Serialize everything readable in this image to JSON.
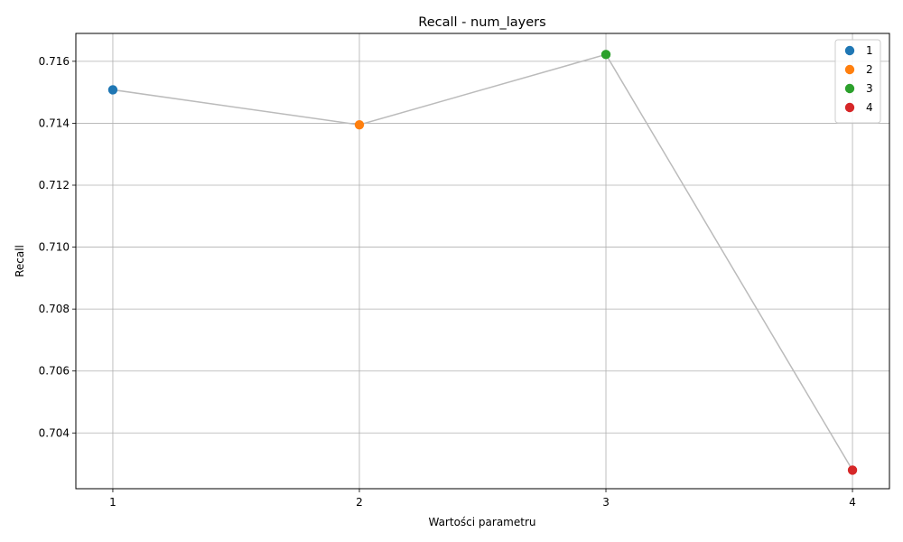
{
  "chart_data": {
    "type": "line",
    "title": "Recall - num_layers",
    "xlabel": "Wartości parametru",
    "ylabel": "Recall",
    "x": [
      1,
      2,
      3,
      4
    ],
    "xticks": [
      "1",
      "2",
      "3",
      "4"
    ],
    "xlim": [
      0.85,
      4.15
    ],
    "ylim": [
      0.7022,
      0.7169
    ],
    "yticks": [
      "0.704",
      "0.706",
      "0.708",
      "0.710",
      "0.712",
      "0.714",
      "0.716"
    ],
    "ytick_values": [
      0.704,
      0.706,
      0.708,
      0.71,
      0.712,
      0.714,
      0.716
    ],
    "grid": true,
    "line_color": "#bbbbbb",
    "legend_position": "top-right",
    "points": [
      {
        "label": "1",
        "x": 1,
        "y": 0.71508,
        "color": "#1f77b4"
      },
      {
        "label": "2",
        "x": 2,
        "y": 0.71395,
        "color": "#ff7f0e"
      },
      {
        "label": "3",
        "x": 3,
        "y": 0.71622,
        "color": "#2ca02c"
      },
      {
        "label": "4",
        "x": 4,
        "y": 0.7028,
        "color": "#d62728"
      }
    ]
  }
}
